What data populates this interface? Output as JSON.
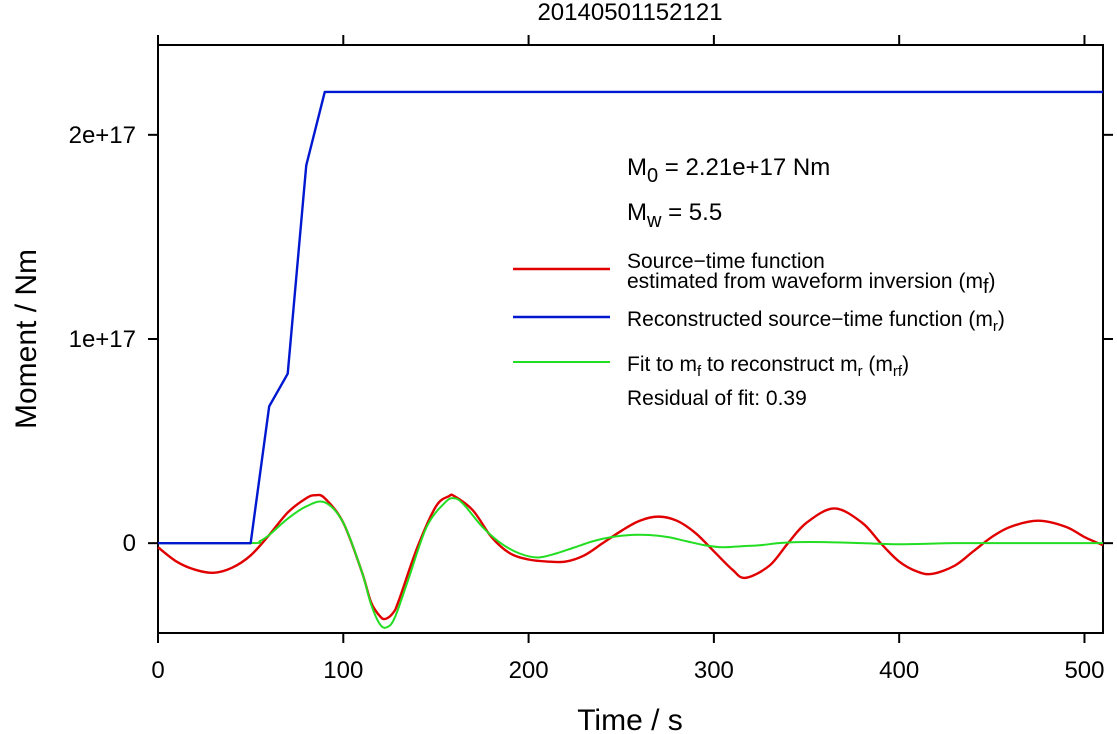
{
  "chart_data": {
    "type": "line",
    "title": "20140501152121",
    "xlabel": "Time / s",
    "ylabel": "Moment / Nm",
    "xlim": [
      0,
      510
    ],
    "ylim": [
      -4.4e+16,
      2.44e+17
    ],
    "x_ticks": [
      0,
      100,
      200,
      300,
      400,
      500
    ],
    "x_tick_labels": [
      "0",
      "100",
      "200",
      "300",
      "400",
      "500"
    ],
    "y_ticks": [
      0,
      1e+17,
      2e+17
    ],
    "y_tick_labels": [
      "0",
      "1e+17",
      "2e+17"
    ],
    "grid": false,
    "legend_position": "right",
    "annotations": {
      "m0_lhs": "M",
      "m0_sub": "0",
      "m0_rhs": " = 2.21e+17 Nm",
      "mw_lhs": "M",
      "mw_sub": "w",
      "mw_rhs": " = 5.5",
      "residual": "Residual of fit: 0.39"
    },
    "legend": {
      "red_line1": "Source−time function",
      "red_line2": "estimated from waveform inversion (m",
      "red_sub": "f",
      "red_end": ")",
      "blue_text": "Reconstructed source−time function (m",
      "blue_sub": "r",
      "blue_end": ")",
      "green_a": "Fit to m",
      "green_sub1": "f",
      "green_b": " to reconstruct m",
      "green_sub2": "r",
      "green_c": " (m",
      "green_sub3": "rf",
      "green_d": ")"
    },
    "series": [
      {
        "color": "#e00000",
        "x": [
          0,
          10,
          20,
          30,
          40,
          50,
          60,
          70,
          80,
          85,
          90,
          100,
          110,
          115,
          120,
          123,
          127,
          130,
          140,
          150,
          157,
          160,
          170,
          180,
          190,
          200,
          210,
          220,
          230,
          240,
          250,
          260,
          270,
          280,
          290,
          300,
          310,
          317,
          330,
          340,
          350,
          365,
          380,
          390,
          400,
          410,
          418,
          430,
          440,
          450,
          460,
          475,
          490,
          500,
          510
        ],
        "y": [
          -2000000000000000.0,
          -9000000000000000.0,
          -1.3e+16,
          -1.45e+16,
          -1.2e+16,
          -6000000000000000.0,
          4000000000000000.0,
          1.5e+16,
          2.2e+16,
          2.35e+16,
          2.2e+16,
          1e+16,
          -1.4e+16,
          -2.9e+16,
          -3.6e+16,
          -3.7e+16,
          -3.4e+16,
          -2.8e+16,
          -2000000000000000.0,
          1.8e+16,
          2.3e+16,
          2.3e+16,
          1.6e+16,
          3000000000000000.0,
          -5000000000000000.0,
          -8000000000000000.0,
          -9000000000000000.0,
          -9000000000000000.0,
          -6000000000000000.0,
          0,
          6000000000000000.0,
          1.1e+16,
          1.3e+16,
          1.1e+16,
          5000000000000000.0,
          -4000000000000000.0,
          -1.3e+16,
          -1.7e+16,
          -1.1e+16,
          0,
          1e+16,
          1.7e+16,
          1e+16,
          0,
          -9000000000000000.0,
          -1.4e+16,
          -1.5e+16,
          -1.1e+16,
          -4000000000000000.0,
          3000000000000000.0,
          8000000000000000.0,
          1.1e+16,
          8000000000000000.0,
          3000000000000000.0,
          -1000000000000000.0
        ]
      },
      {
        "color": "#0018d0",
        "x": [
          0,
          50,
          60,
          70,
          80,
          90,
          510
        ],
        "y": [
          0,
          0,
          6.7e+16,
          8.3e+16,
          1.85e+17,
          2.21e+17,
          2.21e+17
        ]
      },
      {
        "color": "#22dd22",
        "x": [
          0,
          50,
          55,
          60,
          70,
          80,
          90,
          100,
          110,
          115,
          120,
          124,
          128,
          135,
          145,
          155,
          160,
          165,
          175,
          185,
          195,
          205,
          215,
          225,
          235,
          245,
          255,
          265,
          275,
          285,
          295,
          305,
          315,
          325,
          335,
          345,
          360,
          380,
          400,
          430,
          460,
          490,
          510
        ],
        "y": [
          0,
          0,
          1000000000000000.0,
          4000000000000000.0,
          1.2e+16,
          1.8e+16,
          2e+16,
          1e+16,
          -1.4e+16,
          -3e+16,
          -4e+16,
          -4.1e+16,
          -3.6e+16,
          -1.8e+16,
          8000000000000000.0,
          2e+16,
          2.2e+16,
          1.9e+16,
          8000000000000000.0,
          0,
          -5000000000000000.0,
          -7000000000000000.0,
          -5000000000000000.0,
          -2000000000000000.0,
          1000000000000000.0,
          3000000000000000.0,
          4000000000000000.0,
          4000000000000000.0,
          3000000000000000.0,
          1000000000000000.0,
          -1000000000000000.0,
          -2000000000000000.0,
          -1500000000000000.0,
          -1000000000000000.0,
          0,
          500000000000000.0,
          500000000000000.0,
          0,
          -500000000000000.0,
          0,
          0,
          0,
          0
        ]
      }
    ]
  }
}
